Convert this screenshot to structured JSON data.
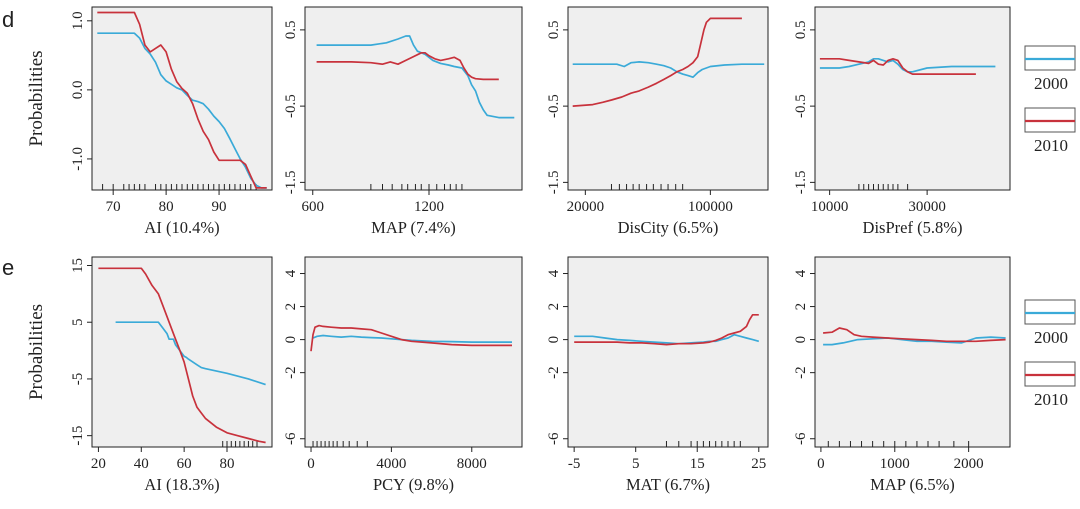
{
  "panels": {
    "row_d": "d",
    "row_e": "e"
  },
  "y_axis_label": "Probabilities",
  "colors": {
    "y2000": "#3aaad8",
    "y2010": "#c8323c",
    "background": "#efefef",
    "axis": "#222222"
  },
  "legends": [
    {
      "row": "d",
      "items": [
        {
          "label": "2000",
          "color": "#3aaad8"
        },
        {
          "label": "2010",
          "color": "#c8323c"
        }
      ]
    },
    {
      "row": "e",
      "items": [
        {
          "label": "2000",
          "color": "#3aaad8"
        },
        {
          "label": "2010",
          "color": "#c8323c"
        }
      ]
    }
  ],
  "chart_data": [
    {
      "type": "line",
      "row": "d",
      "col": 0,
      "xlabel": "AI (10.4%)",
      "ylabel": "Probabilities",
      "xlim": [
        66,
        100
      ],
      "ylim": [
        -1.45,
        1.2
      ],
      "xticks": [
        70,
        80,
        90
      ],
      "yticks": [
        1.0,
        0.0,
        -1.0
      ],
      "ytick_labels": [
        "1.0",
        "0.0",
        "-1.0"
      ],
      "rug": [
        68,
        70,
        72,
        73,
        74,
        75,
        76,
        78,
        79,
        80,
        81,
        82,
        83,
        84,
        85,
        86,
        87,
        88,
        89,
        90,
        91,
        92,
        93,
        94,
        95,
        96,
        97
      ],
      "series": [
        {
          "name": "2000",
          "color": "#3aaad8",
          "x": [
            67,
            74,
            75,
            76,
            77,
            78,
            79,
            80,
            81,
            82,
            83,
            84,
            85,
            86,
            87,
            88,
            89,
            90,
            91,
            92,
            93,
            94,
            95,
            96,
            97,
            98,
            99
          ],
          "y": [
            0.82,
            0.82,
            0.75,
            0.6,
            0.52,
            0.4,
            0.22,
            0.13,
            0.08,
            0.03,
            0.0,
            -0.08,
            -0.15,
            -0.17,
            -0.2,
            -0.28,
            -0.38,
            -0.46,
            -0.56,
            -0.7,
            -0.85,
            -1.0,
            -1.12,
            -1.28,
            -1.38,
            -1.42,
            -1.42
          ]
        },
        {
          "name": "2010",
          "color": "#c8323c",
          "x": [
            67,
            74,
            75,
            76,
            77,
            78,
            79,
            80,
            81,
            82,
            83,
            84,
            85,
            86,
            87,
            88,
            89,
            90,
            91,
            92,
            93,
            94,
            95,
            96,
            97,
            98,
            99
          ],
          "y": [
            1.12,
            1.12,
            0.95,
            0.65,
            0.55,
            0.6,
            0.65,
            0.55,
            0.3,
            0.12,
            0.02,
            -0.05,
            -0.2,
            -0.42,
            -0.6,
            -0.72,
            -0.9,
            -1.02,
            -1.02,
            -1.02,
            -1.02,
            -1.02,
            -1.08,
            -1.25,
            -1.42,
            -1.42,
            -1.42
          ]
        }
      ]
    },
    {
      "type": "line",
      "row": "d",
      "col": 1,
      "xlabel": "MAP (7.4%)",
      "ylabel": "",
      "xlim": [
        560,
        1680
      ],
      "ylim": [
        -1.6,
        0.8
      ],
      "xticks": [
        600,
        1200
      ],
      "yticks": [
        0.5,
        -0.5,
        -1.5
      ],
      "ytick_labels": [
        "0.5",
        "-0.5",
        "-1.5"
      ],
      "rug": [
        900,
        960,
        1010,
        1060,
        1090,
        1130,
        1160,
        1200,
        1240,
        1280,
        1310,
        1340,
        1370
      ],
      "series": [
        {
          "name": "2000",
          "color": "#3aaad8",
          "x": [
            620,
            800,
            900,
            980,
            1040,
            1080,
            1100,
            1120,
            1140,
            1180,
            1220,
            1260,
            1300,
            1330,
            1370,
            1400,
            1420,
            1440,
            1460,
            1480,
            1500,
            1560,
            1640
          ],
          "y": [
            0.3,
            0.3,
            0.3,
            0.33,
            0.38,
            0.42,
            0.42,
            0.3,
            0.22,
            0.18,
            0.1,
            0.06,
            0.04,
            0.02,
            0.0,
            -0.1,
            -0.22,
            -0.3,
            -0.45,
            -0.55,
            -0.62,
            -0.65,
            -0.65
          ]
        },
        {
          "name": "2010",
          "color": "#c8323c",
          "x": [
            620,
            800,
            900,
            960,
            1000,
            1040,
            1080,
            1120,
            1160,
            1180,
            1200,
            1230,
            1260,
            1300,
            1330,
            1360,
            1380,
            1400,
            1420,
            1440,
            1480,
            1560
          ],
          "y": [
            0.08,
            0.08,
            0.07,
            0.05,
            0.08,
            0.05,
            0.1,
            0.15,
            0.2,
            0.2,
            0.16,
            0.12,
            0.1,
            0.12,
            0.14,
            0.1,
            0.0,
            -0.08,
            -0.12,
            -0.14,
            -0.15,
            -0.15
          ]
        }
      ]
    },
    {
      "type": "line",
      "row": "d",
      "col": 2,
      "xlabel": "DisCity (6.5%)",
      "ylabel": "",
      "xlim": [
        16000,
        210000
      ],
      "ylim": [
        -1.6,
        0.8
      ],
      "xscale": "log",
      "xticks": [
        20000,
        100000
      ],
      "yticks": [
        0.5,
        -0.5,
        -1.5
      ],
      "ytick_labels": [
        "0.5",
        "-0.5",
        "-1.5"
      ],
      "rug": [
        28000,
        31000,
        34000,
        37000,
        40000,
        44000,
        48000,
        53000,
        58000,
        64000,
        70000
      ],
      "series": [
        {
          "name": "2000",
          "color": "#3aaad8",
          "x": [
            17000,
            25000,
            30000,
            33000,
            36000,
            40000,
            45000,
            50000,
            55000,
            60000,
            65000,
            70000,
            75000,
            80000,
            85000,
            90000,
            100000,
            120000,
            150000,
            200000
          ],
          "y": [
            0.05,
            0.05,
            0.05,
            0.02,
            0.07,
            0.08,
            0.07,
            0.05,
            0.03,
            0.0,
            -0.05,
            -0.08,
            -0.1,
            -0.12,
            -0.06,
            -0.02,
            0.02,
            0.04,
            0.05,
            0.05
          ]
        },
        {
          "name": "2010",
          "color": "#c8323c",
          "x": [
            17000,
            22000,
            25000,
            28000,
            32000,
            36000,
            40000,
            45000,
            50000,
            55000,
            60000,
            65000,
            70000,
            75000,
            80000,
            85000,
            88000,
            92000,
            95000,
            100000,
            130000,
            150000
          ],
          "y": [
            -0.5,
            -0.48,
            -0.45,
            -0.42,
            -0.38,
            -0.33,
            -0.3,
            -0.25,
            -0.2,
            -0.15,
            -0.1,
            -0.05,
            -0.02,
            0.02,
            0.07,
            0.15,
            0.3,
            0.5,
            0.6,
            0.65,
            0.65,
            0.65
          ]
        }
      ]
    },
    {
      "type": "line",
      "row": "d",
      "col": 3,
      "xlabel": "DisPref (5.8%)",
      "ylabel": "",
      "xlim": [
        7000,
        47000
      ],
      "ylim": [
        -1.6,
        0.8
      ],
      "xticks": [
        10000,
        30000
      ],
      "yticks": [
        0.5,
        -0.5,
        -1.5
      ],
      "ytick_labels": [
        "0.5",
        "-0.5",
        "-1.5"
      ],
      "rug": [
        16000,
        17000,
        18000,
        19000,
        20000,
        21000,
        22000,
        23000,
        24000,
        26000
      ],
      "series": [
        {
          "name": "2000",
          "color": "#3aaad8",
          "x": [
            8000,
            12000,
            14000,
            16000,
            18000,
            19000,
            20000,
            21000,
            22000,
            23000,
            24000,
            25000,
            26000,
            27000,
            30000,
            35000,
            44000
          ],
          "y": [
            0.0,
            0.0,
            0.02,
            0.05,
            0.08,
            0.12,
            0.12,
            0.1,
            0.08,
            0.1,
            0.05,
            -0.02,
            -0.05,
            -0.05,
            0.0,
            0.02,
            0.02
          ]
        },
        {
          "name": "2010",
          "color": "#c8323c",
          "x": [
            8000,
            12000,
            14000,
            16000,
            18000,
            19000,
            20000,
            21000,
            22000,
            23000,
            24000,
            25000,
            26000,
            27000,
            30000,
            35000,
            40000
          ],
          "y": [
            0.12,
            0.12,
            0.1,
            0.08,
            0.06,
            0.1,
            0.05,
            0.04,
            0.1,
            0.12,
            0.1,
            0.0,
            -0.05,
            -0.08,
            -0.08,
            -0.08,
            -0.08
          ]
        }
      ]
    },
    {
      "type": "line",
      "row": "e",
      "col": 0,
      "xlabel": "AI (18.3%)",
      "ylabel": "Probabilities",
      "xlim": [
        17,
        101
      ],
      "ylim": [
        -17,
        16.5
      ],
      "xticks": [
        20,
        40,
        60,
        80
      ],
      "yticks": [
        15,
        5,
        -5,
        -15
      ],
      "ytick_labels": [
        "15",
        "5",
        "-5",
        "-15"
      ],
      "rug": [
        78,
        80,
        82,
        84,
        86,
        88,
        90,
        92,
        94
      ],
      "series": [
        {
          "name": "2000",
          "color": "#3aaad8",
          "x": [
            28,
            45,
            48,
            50,
            52,
            53,
            55,
            56,
            58,
            60,
            61,
            62,
            64,
            66,
            68,
            70,
            80,
            90,
            98
          ],
          "y": [
            5.0,
            5.0,
            5.0,
            4.0,
            3.0,
            2.0,
            2.0,
            1.0,
            0.0,
            -1.0,
            -1.2,
            -1.5,
            -2.0,
            -2.5,
            -3.0,
            -3.2,
            -4.0,
            -5.0,
            -6.0
          ]
        },
        {
          "name": "2010",
          "color": "#c8323c",
          "x": [
            20,
            40,
            42,
            45,
            48,
            50,
            52,
            55,
            58,
            60,
            62,
            64,
            66,
            68,
            70,
            75,
            80,
            85,
            90,
            95,
            98
          ],
          "y": [
            14.5,
            14.5,
            13.5,
            11.5,
            10.0,
            8.0,
            6.0,
            3.0,
            0.0,
            -2.0,
            -5.0,
            -8.0,
            -10.0,
            -11.0,
            -12.0,
            -13.5,
            -14.5,
            -15.0,
            -15.5,
            -16.0,
            -16.2
          ]
        }
      ]
    },
    {
      "type": "line",
      "row": "e",
      "col": 1,
      "xlabel": "PCY (9.8%)",
      "ylabel": "",
      "xlim": [
        -300,
        10500
      ],
      "ylim": [
        -6.5,
        5
      ],
      "xticks": [
        0,
        4000,
        8000
      ],
      "yticks": [
        4,
        2,
        0,
        -2,
        -6
      ],
      "ytick_labels": [
        "4",
        "2",
        "0",
        "-2",
        "-6"
      ],
      "rug": [
        100,
        300,
        500,
        700,
        900,
        1100,
        1300,
        1600,
        1900,
        2300,
        2800
      ],
      "series": [
        {
          "name": "2000",
          "color": "#3aaad8",
          "x": [
            100,
            300,
            600,
            1000,
            1500,
            2000,
            2500,
            3000,
            3500,
            4000,
            4500,
            5000,
            6000,
            7000,
            8000,
            10000
          ],
          "y": [
            0.1,
            0.2,
            0.25,
            0.2,
            0.15,
            0.2,
            0.15,
            0.12,
            0.1,
            0.05,
            0.0,
            -0.05,
            -0.1,
            -0.12,
            -0.15,
            -0.15
          ]
        },
        {
          "name": "2010",
          "color": "#c8323c",
          "x": [
            0,
            100,
            200,
            400,
            600,
            1000,
            1500,
            2000,
            2500,
            3000,
            3500,
            4000,
            4500,
            5000,
            6000,
            7000,
            8000,
            10000
          ],
          "y": [
            -0.7,
            0.3,
            0.75,
            0.85,
            0.8,
            0.75,
            0.7,
            0.7,
            0.65,
            0.6,
            0.4,
            0.2,
            0.0,
            -0.1,
            -0.2,
            -0.3,
            -0.35,
            -0.35
          ]
        }
      ]
    },
    {
      "type": "line",
      "row": "e",
      "col": 2,
      "xlabel": "MAT (6.7%)",
      "ylabel": "",
      "xlim": [
        -6,
        26.5
      ],
      "ylim": [
        -6.5,
        5
      ],
      "xticks": [
        -5,
        5,
        15,
        25
      ],
      "yticks": [
        4,
        2,
        0,
        -2,
        -6
      ],
      "ytick_labels": [
        "4",
        "2",
        "0",
        "-2",
        "-6"
      ],
      "rug": [
        10,
        12,
        14,
        15,
        16,
        17,
        18,
        19,
        20,
        21,
        22
      ],
      "series": [
        {
          "name": "2000",
          "color": "#3aaad8",
          "x": [
            -5,
            -2,
            0,
            2,
            4,
            6,
            8,
            10,
            12,
            14,
            16,
            17,
            18,
            19,
            20,
            21,
            22,
            23,
            24,
            25
          ],
          "y": [
            0.2,
            0.2,
            0.1,
            0.0,
            -0.05,
            -0.1,
            -0.15,
            -0.2,
            -0.25,
            -0.2,
            -0.15,
            -0.1,
            -0.1,
            0.0,
            0.1,
            0.3,
            0.2,
            0.1,
            0.0,
            -0.1
          ]
        },
        {
          "name": "2010",
          "color": "#c8323c",
          "x": [
            -5,
            -2,
            0,
            2,
            4,
            6,
            8,
            10,
            12,
            14,
            16,
            17,
            18,
            19,
            20,
            21,
            22,
            23,
            23.5,
            24,
            25
          ],
          "y": [
            -0.15,
            -0.15,
            -0.15,
            -0.15,
            -0.2,
            -0.2,
            -0.25,
            -0.3,
            -0.25,
            -0.25,
            -0.2,
            -0.15,
            -0.05,
            0.1,
            0.3,
            0.4,
            0.5,
            0.8,
            1.2,
            1.5,
            1.5
          ]
        }
      ]
    },
    {
      "type": "line",
      "row": "e",
      "col": 3,
      "xlabel": "MAP (6.5%)",
      "ylabel": "",
      "xlim": [
        -80,
        2560
      ],
      "ylim": [
        -6.5,
        5
      ],
      "xticks": [
        0,
        1000,
        2000
      ],
      "yticks": [
        4,
        2,
        0,
        -2,
        -6
      ],
      "ytick_labels": [
        "4",
        "2",
        "0",
        "-2",
        "-6"
      ],
      "rug": [
        100,
        250,
        400,
        550,
        700,
        850,
        1000,
        1150,
        1300,
        1450,
        1600,
        1800,
        2000
      ],
      "series": [
        {
          "name": "2000",
          "color": "#3aaad8",
          "x": [
            30,
            150,
            300,
            500,
            700,
            900,
            1100,
            1300,
            1500,
            1700,
            1900,
            2100,
            2300,
            2500
          ],
          "y": [
            -0.3,
            -0.3,
            -0.2,
            0.0,
            0.05,
            0.1,
            0.0,
            -0.1,
            -0.1,
            -0.15,
            -0.2,
            0.1,
            0.15,
            0.1
          ]
        },
        {
          "name": "2010",
          "color": "#c8323c",
          "x": [
            30,
            150,
            250,
            350,
            450,
            550,
            700,
            900,
            1100,
            1300,
            1500,
            1700,
            1900,
            2100,
            2300,
            2500
          ],
          "y": [
            0.4,
            0.45,
            0.7,
            0.6,
            0.3,
            0.2,
            0.15,
            0.1,
            0.05,
            0.0,
            -0.05,
            -0.1,
            -0.1,
            -0.1,
            -0.05,
            0.0
          ]
        }
      ]
    }
  ]
}
